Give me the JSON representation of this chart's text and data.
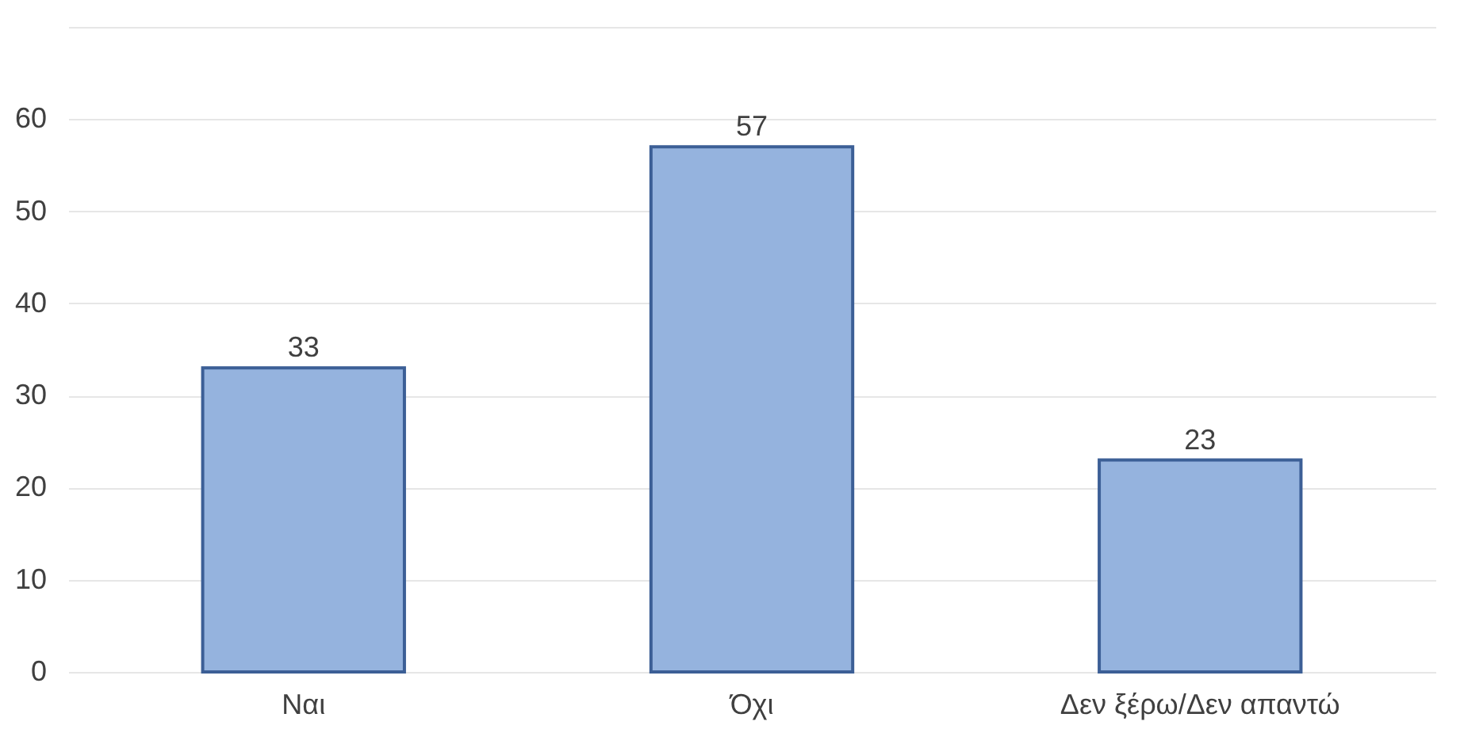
{
  "chart_data": {
    "type": "bar",
    "categories": [
      "Ναι",
      "Όχι",
      "Δεν ξέρω/Δεν απαντώ"
    ],
    "values": [
      33,
      57,
      23
    ],
    "color": "#95b3de",
    "ylim": [
      0,
      70
    ],
    "yticks": [
      0,
      10,
      20,
      30,
      40,
      50,
      60,
      {
        "value": 70,
        "label": null
      }
    ],
    "grid": "y",
    "data_labels": true
  }
}
